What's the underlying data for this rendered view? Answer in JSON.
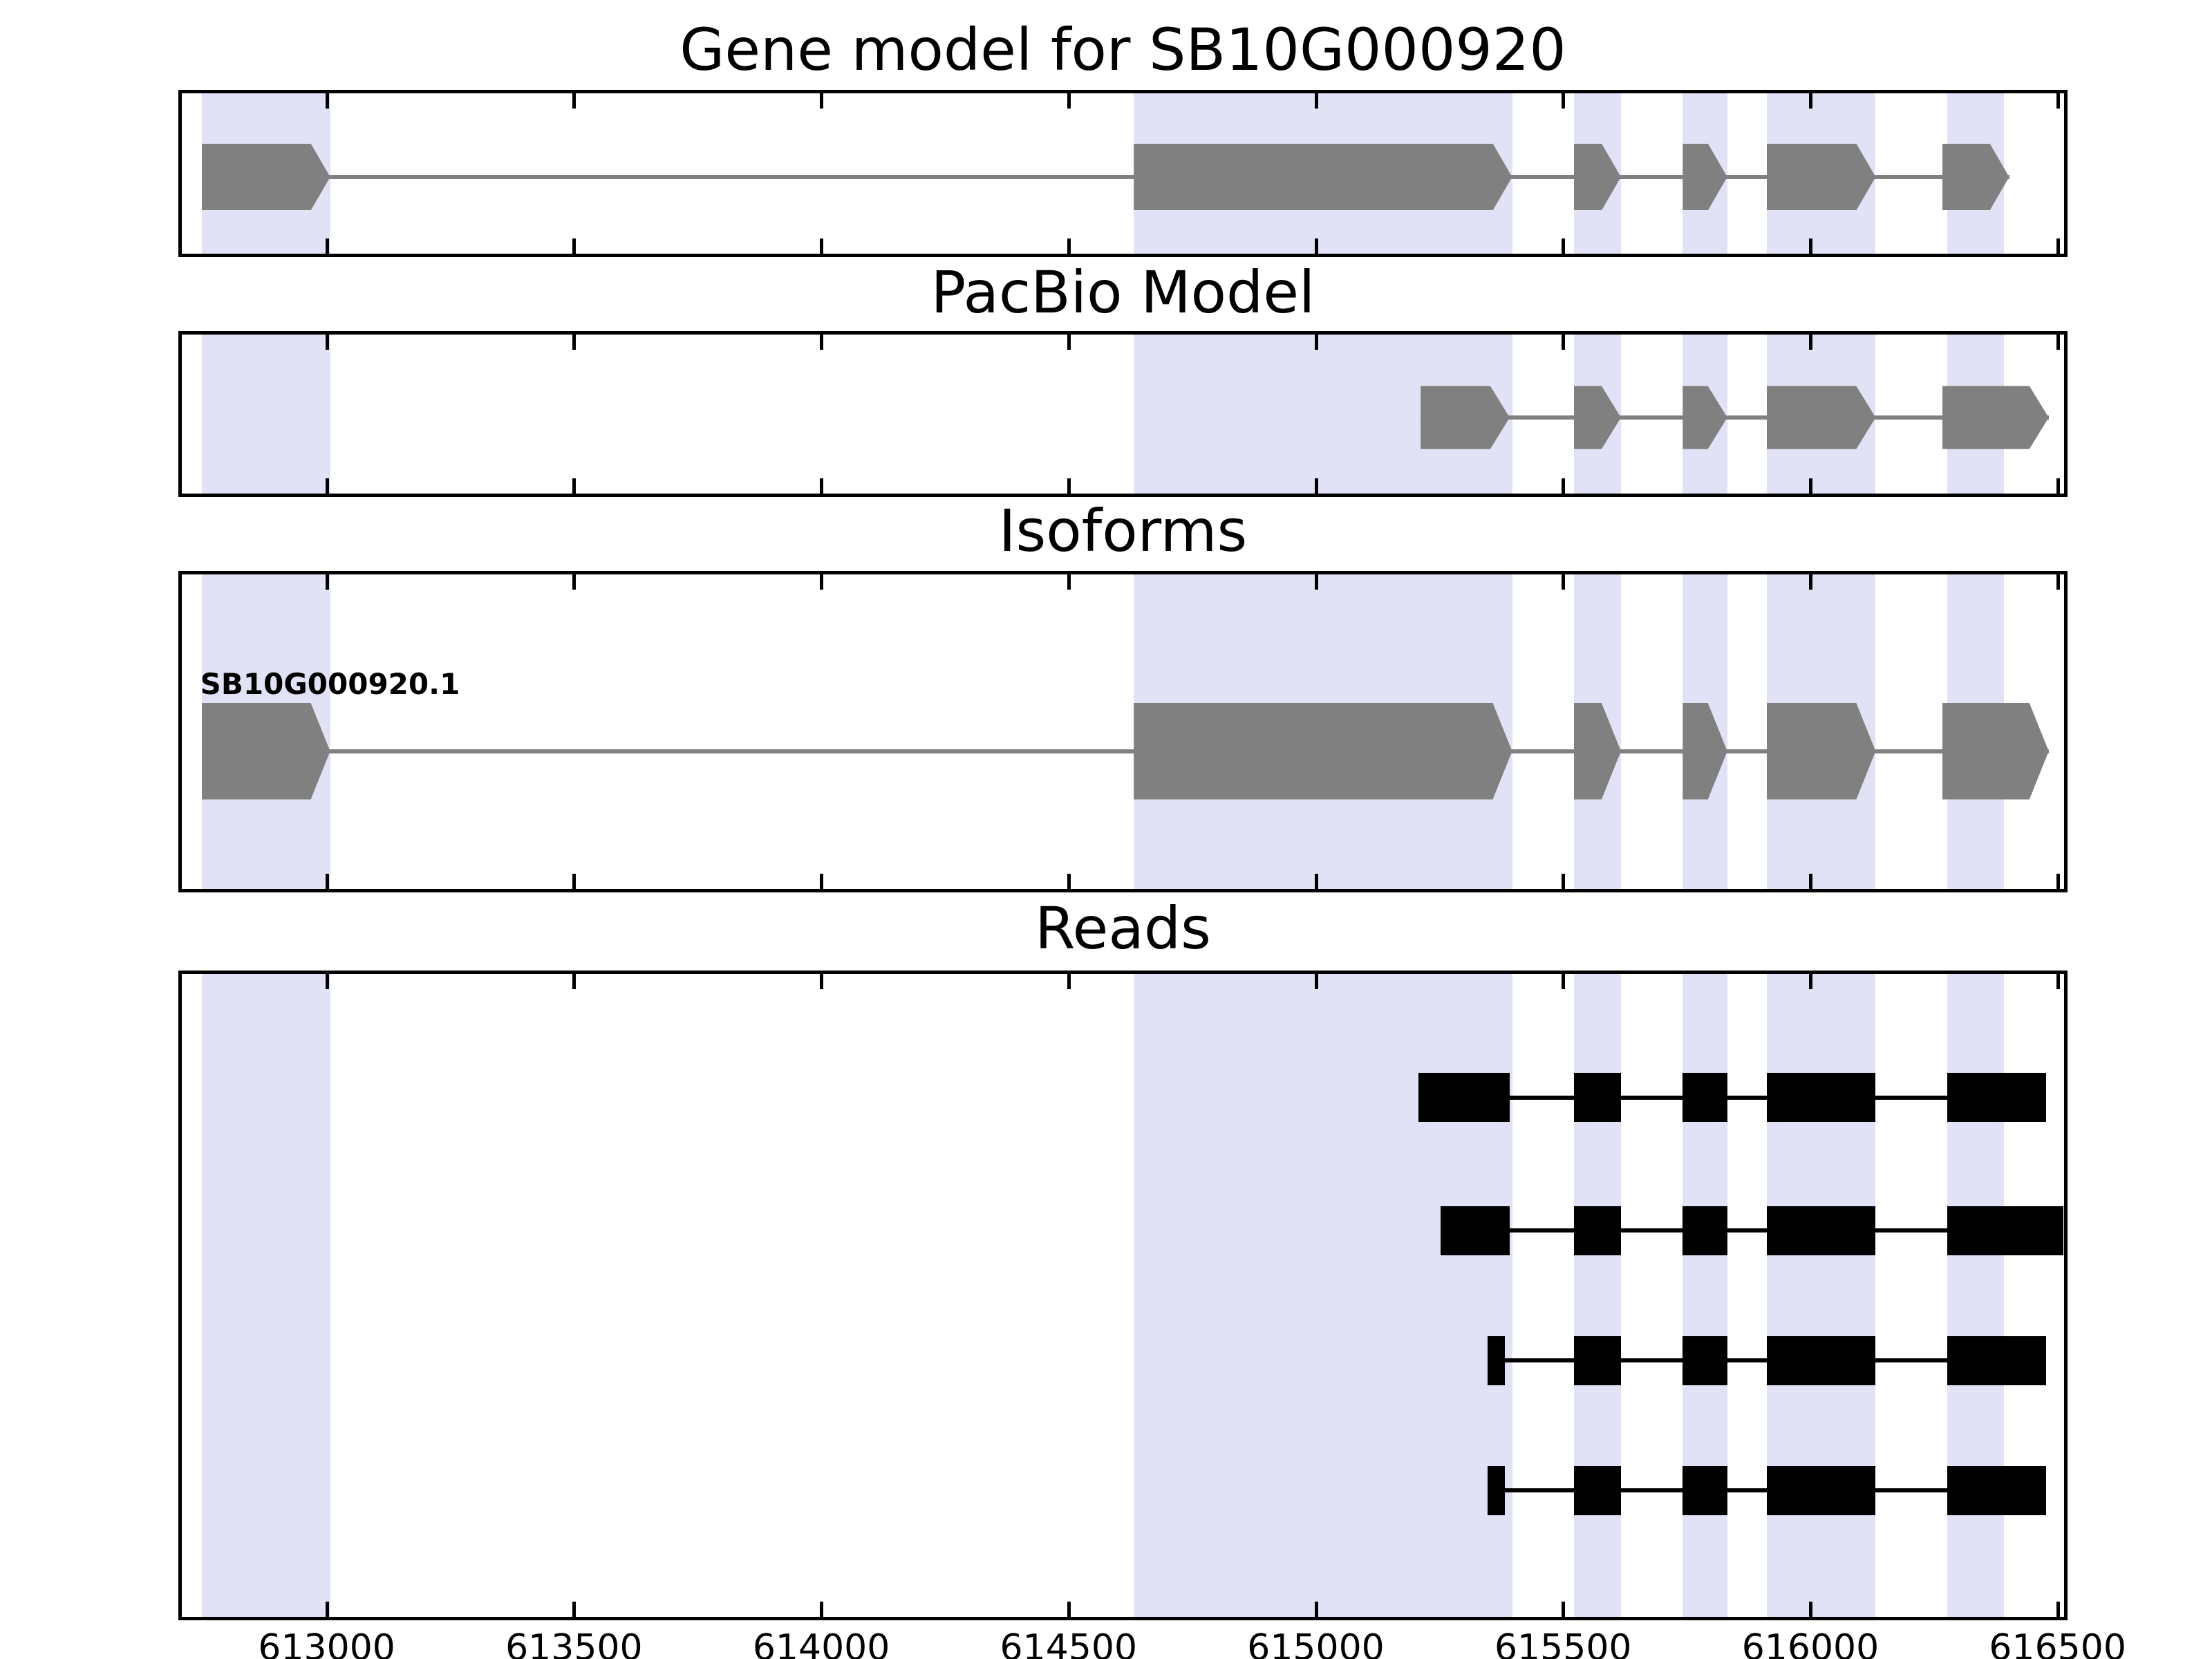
{
  "figure": {
    "background": "#ffffff",
    "frame_color": "#000000",
    "gene_color": "#808080",
    "read_color": "#000000",
    "highlight_color": "#e2e2f6"
  },
  "chart_data": {
    "type": "gene-model-browser",
    "xlim": [
      612700,
      616520
    ],
    "xticks": [
      613000,
      613500,
      614000,
      614500,
      615000,
      615500,
      616000,
      616500
    ],
    "xtick_labels": [
      "613000",
      "613500",
      "614000",
      "614500",
      "615000",
      "615500",
      "616000",
      "616500"
    ],
    "highlight_color": "#e2e2f6",
    "highlight_regions": [
      [
        612740,
        613000
      ],
      [
        614625,
        615390
      ],
      [
        615515,
        615610
      ],
      [
        615735,
        615825
      ],
      [
        615905,
        616125
      ],
      [
        616270,
        616385
      ]
    ],
    "panels": [
      {
        "title": "Gene model for SB10G000920",
        "features": [
          {
            "type": "transcript",
            "label": "",
            "color": "#808080",
            "stranded": true,
            "y": 0.5,
            "exon_height": 0.4,
            "exons": [
              [
                612740,
                613000
              ],
              [
                614625,
                615390
              ],
              [
                615515,
                615610
              ],
              [
                615735,
                615825
              ],
              [
                615905,
                616125
              ],
              [
                616260,
                616395
              ]
            ]
          }
        ]
      },
      {
        "title": "PacBio Model",
        "features": [
          {
            "type": "transcript",
            "label": "",
            "color": "#808080",
            "stranded": true,
            "y": 0.5,
            "exon_height": 0.38,
            "exons": [
              [
                615205,
                615385
              ],
              [
                615515,
                615610
              ],
              [
                615735,
                615825
              ],
              [
                615905,
                616125
              ],
              [
                616260,
                616475
              ]
            ]
          }
        ]
      },
      {
        "title": "Isoforms",
        "features": [
          {
            "type": "transcript",
            "label": "SB10G000920.1",
            "color": "#808080",
            "stranded": true,
            "y": 0.55,
            "exon_height": 0.3,
            "exons": [
              [
                612740,
                613000
              ],
              [
                614625,
                615390
              ],
              [
                615515,
                615610
              ],
              [
                615735,
                615825
              ],
              [
                615905,
                616125
              ],
              [
                616260,
                616475
              ]
            ]
          }
        ]
      },
      {
        "title": "Reads",
        "features": [
          {
            "type": "read",
            "label": "",
            "color": "#000000",
            "stranded": false,
            "y": 0.19,
            "exon_height": 0.075,
            "exons": [
              [
                615200,
                615385
              ],
              [
                615515,
                615610
              ],
              [
                615735,
                615825
              ],
              [
                615905,
                616125
              ],
              [
                616270,
                616470
              ]
            ]
          },
          {
            "type": "read",
            "label": "",
            "color": "#000000",
            "stranded": false,
            "y": 0.395,
            "exon_height": 0.075,
            "exons": [
              [
                615245,
                615385
              ],
              [
                615515,
                615610
              ],
              [
                615735,
                615825
              ],
              [
                615905,
                616125
              ],
              [
                616270,
                616505
              ]
            ]
          },
          {
            "type": "read",
            "label": "",
            "color": "#000000",
            "stranded": false,
            "y": 0.595,
            "exon_height": 0.075,
            "exons": [
              [
                615340,
                615375
              ],
              [
                615515,
                615610
              ],
              [
                615735,
                615825
              ],
              [
                615905,
                616125
              ],
              [
                616270,
                616470
              ]
            ]
          },
          {
            "type": "read",
            "label": "",
            "color": "#000000",
            "stranded": false,
            "y": 0.795,
            "exon_height": 0.075,
            "exons": [
              [
                615340,
                615375
              ],
              [
                615515,
                615610
              ],
              [
                615735,
                615825
              ],
              [
                615905,
                616125
              ],
              [
                616270,
                616470
              ]
            ]
          }
        ]
      }
    ]
  }
}
